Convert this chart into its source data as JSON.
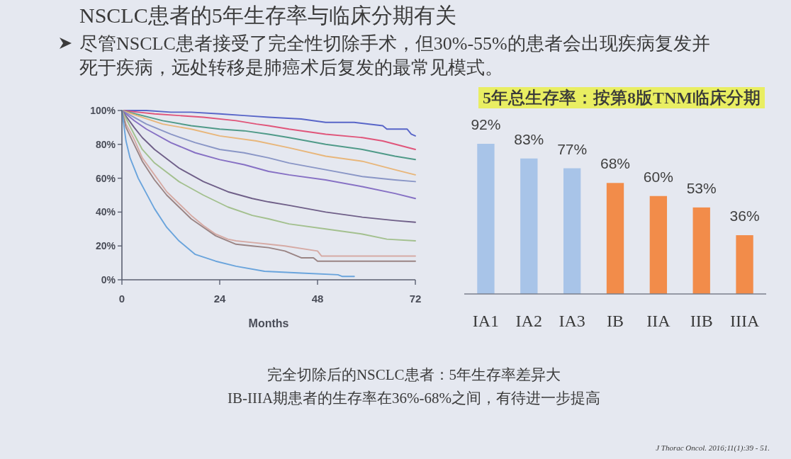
{
  "chart_data": [
    {
      "type": "line",
      "title": "NSCLC患者的5年生存率与临床分期有关",
      "subtitle": "尽管NSCLC患者接受了完全性切除手术，但30%-55%的患者会出现疾病复发并死于疾病，远处转移是肺癌术后复发的最常见模式。",
      "xlabel": "Months",
      "xlim": [
        0,
        72
      ],
      "xticks": [
        0,
        24,
        48,
        72
      ],
      "ylim": [
        0,
        100
      ],
      "yticks": [
        {
          "value": 0,
          "label": "0%"
        },
        {
          "value": 20,
          "label": "20%"
        },
        {
          "value": 40,
          "label": "40%"
        },
        {
          "value": 60,
          "label": "60%"
        },
        {
          "value": 80,
          "label": "80%"
        },
        {
          "value": 100,
          "label": "100%"
        }
      ],
      "series": [
        {
          "color": "#5865c8",
          "x": [
            0,
            6,
            12,
            17,
            24,
            30,
            36,
            44,
            50,
            57,
            64,
            65,
            70,
            71,
            72
          ],
          "values": [
            100,
            100,
            99,
            99,
            98,
            97,
            96,
            95,
            93,
            93,
            91,
            89,
            89,
            86,
            85
          ]
        },
        {
          "color": "#e0557a",
          "x": [
            0,
            4,
            8,
            14,
            20,
            28,
            33,
            36,
            41,
            50,
            59,
            64,
            72
          ],
          "values": [
            100,
            99,
            98,
            97,
            96,
            94,
            92,
            91,
            89,
            86,
            84,
            82,
            77
          ]
        },
        {
          "color": "#4f9a88",
          "x": [
            0,
            5,
            10,
            17,
            24,
            30,
            36,
            41,
            50,
            59,
            67,
            72
          ],
          "values": [
            100,
            97,
            94,
            91,
            89,
            88,
            86,
            84,
            80,
            77,
            73,
            71
          ]
        },
        {
          "color": "#e8b67a",
          "x": [
            0,
            5,
            10,
            17,
            24,
            33,
            41,
            50,
            59,
            67,
            72
          ],
          "values": [
            100,
            96,
            92,
            89,
            85,
            82,
            78,
            73,
            70,
            65,
            62
          ]
        },
        {
          "color": "#8a96c6",
          "x": [
            0,
            3,
            6,
            12,
            18,
            24,
            30,
            36,
            41,
            50,
            59,
            67,
            72
          ],
          "values": [
            100,
            96,
            92,
            86,
            81,
            77,
            75,
            72,
            69,
            65,
            61,
            59,
            58
          ]
        },
        {
          "color": "#8670c4",
          "x": [
            0,
            3,
            6,
            12,
            18,
            24,
            30,
            36,
            41,
            50,
            59,
            67,
            72
          ],
          "values": [
            100,
            94,
            89,
            81,
            75,
            71,
            68,
            64,
            62,
            59,
            55,
            51,
            48
          ]
        },
        {
          "color": "#6f5f88",
          "x": [
            0,
            3,
            5,
            8,
            14,
            20,
            26,
            32,
            36,
            41,
            50,
            59,
            67,
            72
          ],
          "values": [
            100,
            90,
            84,
            77,
            66,
            58,
            52,
            48,
            46,
            44,
            40,
            37,
            35,
            34
          ]
        },
        {
          "color": "#a3c08e",
          "x": [
            0,
            3,
            5,
            8,
            14,
            20,
            26,
            32,
            36,
            41,
            50,
            59,
            65,
            72
          ],
          "values": [
            100,
            86,
            77,
            69,
            58,
            50,
            43,
            38,
            36,
            33,
            30,
            27,
            24,
            23
          ]
        },
        {
          "color": "#d6aaa4",
          "x": [
            0,
            1,
            3,
            5,
            8,
            11,
            14,
            17,
            20,
            23,
            26,
            28,
            32,
            36,
            40,
            48,
            49,
            72
          ],
          "values": [
            100,
            92,
            83,
            72,
            62,
            52,
            45,
            38,
            32,
            27,
            24,
            23,
            22,
            21,
            20,
            17,
            14,
            14
          ]
        },
        {
          "color": "#9a8484",
          "x": [
            0,
            1,
            3,
            5,
            8,
            11,
            14,
            17,
            20,
            23,
            26,
            28,
            32,
            36,
            40,
            44,
            47,
            48,
            72
          ],
          "values": [
            100,
            90,
            80,
            70,
            59,
            50,
            43,
            36,
            31,
            26,
            23,
            21,
            20,
            19,
            17,
            13,
            13,
            11,
            11
          ]
        },
        {
          "color": "#6aa4dc",
          "x": [
            0,
            1,
            2,
            4,
            6,
            8,
            11,
            14,
            18,
            23,
            28,
            35,
            44,
            53,
            54,
            57
          ],
          "values": [
            100,
            82,
            72,
            60,
            51,
            42,
            31,
            23,
            15,
            11,
            8,
            5,
            4,
            3,
            2,
            2
          ]
        }
      ],
      "annotations": [
        "完全切除后的NSCLC患者：5年生存率差异大",
        "IB-IIIA期患者的生存率在36%-68%之间，有待进一步提高",
        "J Thorac Oncol. 2016;11(1):39 - 51."
      ]
    },
    {
      "type": "bar",
      "title": "5年总生存率：按第8版TNM临床分期",
      "categories": [
        "IA1",
        "IA2",
        "IA3",
        "IB",
        "IIA",
        "IIB",
        "IIIA"
      ],
      "values": [
        92,
        83,
        77,
        68,
        60,
        53,
        36
      ],
      "colors": [
        "#a8c4e8",
        "#a8c4e8",
        "#a8c4e8",
        "#f28c4a",
        "#f28c4a",
        "#f28c4a",
        "#f28c4a"
      ],
      "value_labels": [
        "92%",
        "83%",
        "77%",
        "68%",
        "60%",
        "53%",
        "36%"
      ]
    }
  ]
}
